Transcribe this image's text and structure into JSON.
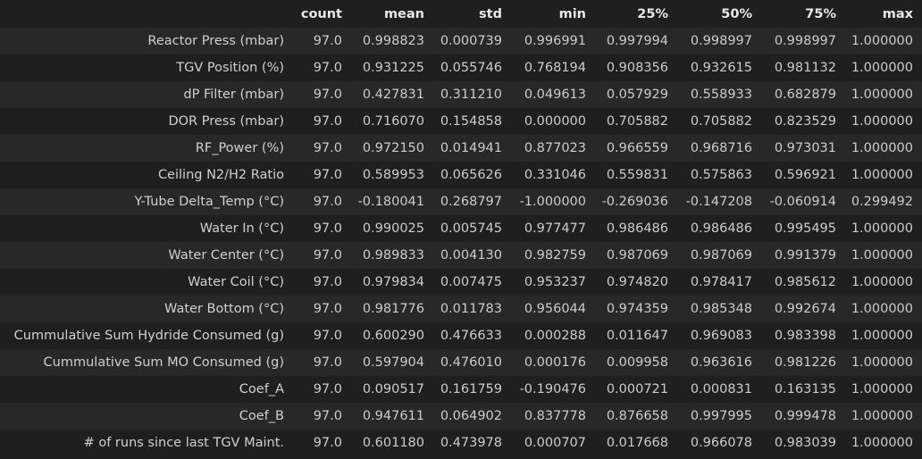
{
  "table": {
    "columns": [
      "count",
      "mean",
      "std",
      "min",
      "25%",
      "50%",
      "75%",
      "max"
    ],
    "rows": [
      {
        "label": "Reactor Press (mbar)",
        "values": [
          "97.0",
          "0.998823",
          "0.000739",
          "0.996991",
          "0.997994",
          "0.998997",
          "0.998997",
          "1.000000"
        ]
      },
      {
        "label": "TGV Position (%)",
        "values": [
          "97.0",
          "0.931225",
          "0.055746",
          "0.768194",
          "0.908356",
          "0.932615",
          "0.981132",
          "1.000000"
        ]
      },
      {
        "label": "dP Filter (mbar)",
        "values": [
          "97.0",
          "0.427831",
          "0.311210",
          "0.049613",
          "0.057929",
          "0.558933",
          "0.682879",
          "1.000000"
        ]
      },
      {
        "label": "DOR Press (mbar)",
        "values": [
          "97.0",
          "0.716070",
          "0.154858",
          "0.000000",
          "0.705882",
          "0.705882",
          "0.823529",
          "1.000000"
        ]
      },
      {
        "label": "RF_Power (%)",
        "values": [
          "97.0",
          "0.972150",
          "0.014941",
          "0.877023",
          "0.966559",
          "0.968716",
          "0.973031",
          "1.000000"
        ]
      },
      {
        "label": "Ceiling N2/H2 Ratio",
        "values": [
          "97.0",
          "0.589953",
          "0.065626",
          "0.331046",
          "0.559831",
          "0.575863",
          "0.596921",
          "1.000000"
        ]
      },
      {
        "label": "Y-Tube Delta_Temp (°C)",
        "values": [
          "97.0",
          "-0.180041",
          "0.268797",
          "-1.000000",
          "-0.269036",
          "-0.147208",
          "-0.060914",
          "0.299492"
        ]
      },
      {
        "label": "Water In (°C)",
        "values": [
          "97.0",
          "0.990025",
          "0.005745",
          "0.977477",
          "0.986486",
          "0.986486",
          "0.995495",
          "1.000000"
        ]
      },
      {
        "label": "Water Center (°C)",
        "values": [
          "97.0",
          "0.989833",
          "0.004130",
          "0.982759",
          "0.987069",
          "0.987069",
          "0.991379",
          "1.000000"
        ]
      },
      {
        "label": "Water Coil (°C)",
        "values": [
          "97.0",
          "0.979834",
          "0.007475",
          "0.953237",
          "0.974820",
          "0.978417",
          "0.985612",
          "1.000000"
        ]
      },
      {
        "label": "Water Bottom (°C)",
        "values": [
          "97.0",
          "0.981776",
          "0.011783",
          "0.956044",
          "0.974359",
          "0.985348",
          "0.992674",
          "1.000000"
        ]
      },
      {
        "label": "Cummulative Sum Hydride Consumed (g)",
        "values": [
          "97.0",
          "0.600290",
          "0.476633",
          "0.000288",
          "0.011647",
          "0.969083",
          "0.983398",
          "1.000000"
        ]
      },
      {
        "label": "Cummulative Sum MO Consumed (g)",
        "values": [
          "97.0",
          "0.597904",
          "0.476010",
          "0.000176",
          "0.009958",
          "0.963616",
          "0.981226",
          "1.000000"
        ]
      },
      {
        "label": "Coef_A",
        "values": [
          "97.0",
          "0.090517",
          "0.161759",
          "-0.190476",
          "0.000721",
          "0.000831",
          "0.163135",
          "1.000000"
        ]
      },
      {
        "label": "Coef_B",
        "values": [
          "97.0",
          "0.947611",
          "0.064902",
          "0.837778",
          "0.876658",
          "0.997995",
          "0.999478",
          "1.000000"
        ]
      },
      {
        "label": "# of runs since last TGV Maint.",
        "values": [
          "97.0",
          "0.601180",
          "0.473978",
          "0.000707",
          "0.017668",
          "0.966078",
          "0.983039",
          "1.000000"
        ]
      }
    ]
  }
}
